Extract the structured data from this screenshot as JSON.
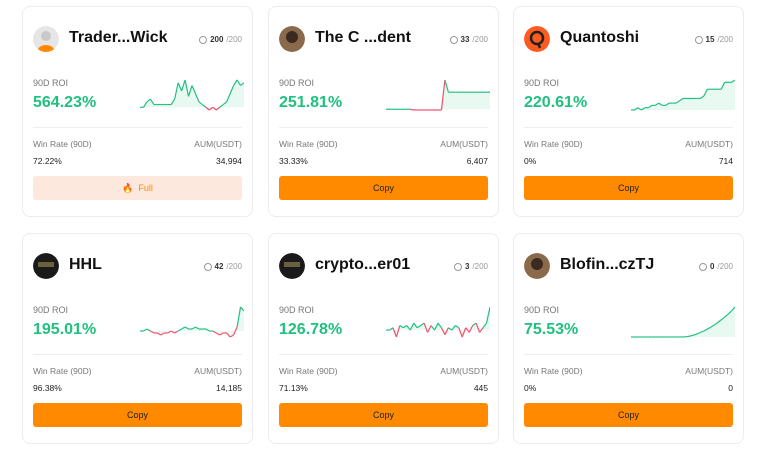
{
  "colors": {
    "accent": "#ff8a00",
    "positive": "#20c07f",
    "negative": "#f0506e",
    "full_bg": "#fde8dd"
  },
  "labels": {
    "roi": "90D ROI",
    "win_rate": "Win Rate (90D)",
    "aum": "AUM(USDT)"
  },
  "traders": [
    {
      "name": "Trader...Wick",
      "followers": "200",
      "max": "/200",
      "roi": "564.23%",
      "win_rate": "72.22%",
      "aum": "34,994",
      "button": "Full",
      "full": true,
      "avatar": "default-user",
      "spark": [
        0,
        0,
        2,
        3,
        1,
        1,
        1,
        1,
        1,
        1,
        3,
        9,
        6,
        10,
        4,
        8,
        5,
        2,
        1,
        0,
        -1,
        0,
        -1,
        0,
        1,
        2,
        5,
        8,
        10,
        8,
        9
      ]
    },
    {
      "name": "The C ...dent",
      "followers": "33",
      "max": "/200",
      "roi": "251.81%",
      "win_rate": "33.33%",
      "aum": "6,407",
      "button": "Copy",
      "full": false,
      "avatar": "photo",
      "spark": [
        0,
        0,
        0,
        0,
        0,
        0,
        0,
        0,
        -0.3,
        -0.3,
        -0.3,
        -0.3,
        -0.3,
        -0.3,
        -0.3,
        -0.3,
        -0.3,
        12,
        7,
        7,
        7,
        7,
        7,
        7,
        7,
        7,
        7,
        7,
        7,
        7,
        7
      ]
    },
    {
      "name": "Quantoshi",
      "followers": "15",
      "max": "/200",
      "roi": "220.61%",
      "win_rate": "0%",
      "aum": "714",
      "button": "Copy",
      "full": false,
      "avatar": "q-logo",
      "spark": [
        0,
        0,
        1,
        0,
        1,
        1,
        2,
        2,
        3,
        2,
        2,
        3,
        3,
        3,
        4,
        5,
        5,
        5,
        5,
        5,
        5,
        6,
        9,
        9,
        9,
        9,
        9,
        12,
        12,
        12,
        13
      ]
    },
    {
      "name": "HHL",
      "followers": "42",
      "max": "/200",
      "roi": "195.01%",
      "win_rate": "96.38%",
      "aum": "14,185",
      "button": "Copy",
      "full": false,
      "avatar": "dark",
      "spark": [
        0,
        0,
        1,
        0,
        -1,
        -1,
        -2,
        -1,
        -1,
        0,
        -1,
        0,
        1,
        2,
        1,
        1,
        2,
        1,
        1,
        1,
        0,
        0,
        -1,
        -2,
        -1,
        -1,
        -3,
        -2,
        2,
        12,
        10
      ]
    },
    {
      "name": "crypto...er01",
      "followers": "3",
      "max": "/200",
      "roi": "126.78%",
      "win_rate": "71.13%",
      "aum": "445",
      "button": "Copy",
      "full": false,
      "avatar": "dark",
      "spark": [
        0,
        0,
        1,
        -3,
        2,
        1,
        2,
        0,
        3,
        1,
        2,
        3,
        -1,
        2,
        0,
        3,
        1,
        -2,
        1,
        0,
        2,
        1,
        -3,
        1,
        -1,
        2,
        3,
        -1,
        1,
        3,
        10
      ]
    },
    {
      "name": "Blofin...czTJ",
      "followers": "0",
      "max": "/200",
      "roi": "75.53%",
      "win_rate": "0%",
      "aum": "0",
      "button": "Copy",
      "full": false,
      "avatar": "photo",
      "spark": [
        0,
        0,
        0,
        0,
        0,
        0,
        0,
        0,
        0,
        0,
        0,
        0,
        0,
        0,
        0,
        0,
        0.1,
        0.3,
        0.6,
        1,
        1.5,
        2,
        2.6,
        3.3,
        4,
        4.8,
        5.7,
        6.6,
        7.6,
        8.7,
        10
      ]
    }
  ]
}
